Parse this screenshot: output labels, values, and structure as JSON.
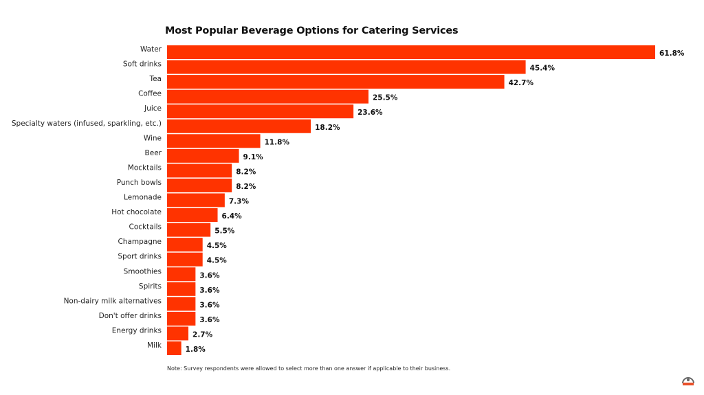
{
  "chart_data": {
    "type": "bar",
    "orientation": "horizontal",
    "title": "Most Popular Beverage Options for Catering Services",
    "categories": [
      "Water",
      "Soft drinks",
      "Tea",
      "Coffee",
      "Juice",
      "Specialty waters (infused, sparkling, etc.)",
      "Wine",
      "Beer",
      "Mocktails",
      "Punch bowls",
      "Lemonade",
      "Hot chocolate",
      "Cocktails",
      "Champagne",
      "Sport drinks",
      "Smoothies",
      "Spirits",
      "Non-dairy milk alternatives",
      "Don't offer drinks",
      "Energy drinks",
      "Milk"
    ],
    "values": [
      61.8,
      45.4,
      42.7,
      25.5,
      23.6,
      18.2,
      11.8,
      9.1,
      8.2,
      8.2,
      7.3,
      6.4,
      5.5,
      4.5,
      4.5,
      3.6,
      3.6,
      3.6,
      3.6,
      2.7,
      1.8
    ],
    "value_suffix": "%",
    "bar_color": "#ff3300",
    "grid": false,
    "legend": "none",
    "xlim": [
      0,
      61.8
    ]
  },
  "note": "Note: Survey respondents were allowed to select more than one answer if applicable to their business.",
  "logo": {
    "icon": "brand-logo-icon",
    "color": "#e8502a"
  }
}
